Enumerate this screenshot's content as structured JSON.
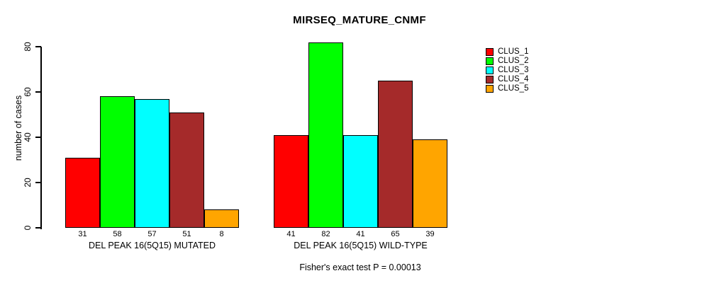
{
  "chart_data": {
    "type": "bar",
    "title": "MIRSEQ_MATURE_CNMF",
    "ylabel": "number of cases",
    "xlabel": "",
    "ylim": [
      0,
      80
    ],
    "yticks": [
      0,
      20,
      40,
      60,
      80
    ],
    "grid": false,
    "legend_position": "right-top-outside",
    "bar_border_color": "#000000",
    "series": [
      {
        "name": "CLUS_1",
        "color": "#ff0000"
      },
      {
        "name": "CLUS_2",
        "color": "#00ff00"
      },
      {
        "name": "CLUS_3",
        "color": "#00ffff"
      },
      {
        "name": "CLUS_4",
        "color": "#a52a2a"
      },
      {
        "name": "CLUS_5",
        "color": "#ffa500"
      }
    ],
    "groups": [
      {
        "label": "DEL PEAK 16(5Q15) MUTATED",
        "values": [
          31,
          58,
          57,
          51,
          8
        ]
      },
      {
        "label": "DEL PEAK 16(5Q15) WILD-TYPE",
        "values": [
          41,
          82,
          41,
          65,
          39
        ]
      }
    ],
    "bar_value_labels_shown": true,
    "annotation": "Fisher's exact test P = 0.00013"
  }
}
